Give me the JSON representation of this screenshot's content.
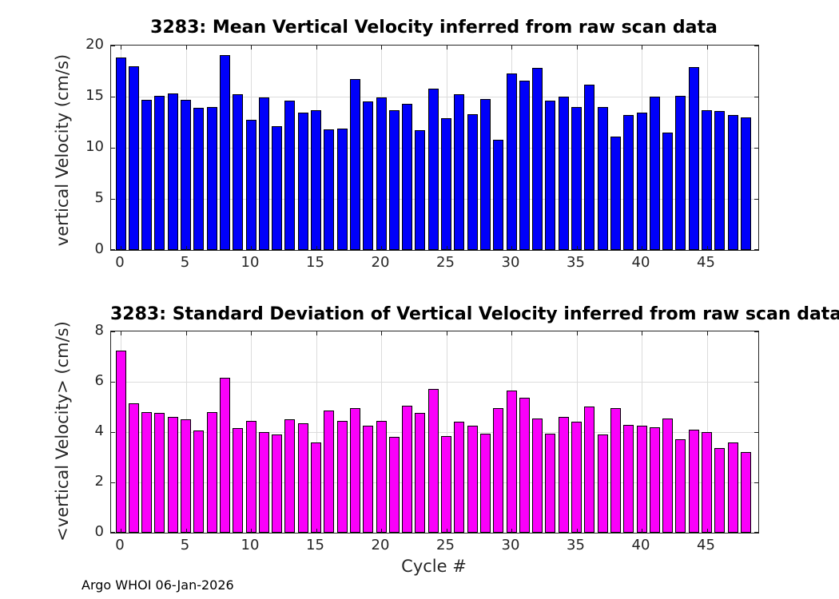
{
  "figure": {
    "xlabel": "Cycle #",
    "footer": "Argo WHOI 06-Jan-2026",
    "background_color": "#ffffff",
    "axis_color": "#262626",
    "grid_color": "#dcdcdc"
  },
  "chart_data": [
    {
      "type": "bar",
      "title": "3283: Mean Vertical Velocity inferred from raw scan data",
      "ylabel": "vertical Velocity (cm/s)",
      "xlabel": "",
      "bar_color": "#0000fa",
      "bar_edge_color": "#000000",
      "grid": true,
      "legend": null,
      "ylim": [
        0,
        20
      ],
      "yticks": [
        0,
        5,
        10,
        15,
        20
      ],
      "xticks": [
        0,
        5,
        10,
        15,
        20,
        25,
        30,
        35,
        40,
        45
      ],
      "xlim": [
        -0.7,
        49.1
      ],
      "x": [
        0,
        1,
        2,
        3,
        4,
        5,
        6,
        7,
        8,
        9,
        10,
        11,
        12,
        13,
        14,
        15,
        16,
        17,
        18,
        19,
        20,
        21,
        22,
        23,
        24,
        25,
        26,
        27,
        28,
        29,
        30,
        31,
        32,
        33,
        34,
        35,
        36,
        37,
        38,
        39,
        40,
        41,
        42,
        43,
        44,
        45,
        46,
        47,
        48
      ],
      "values": [
        18.8,
        18.0,
        14.7,
        15.1,
        15.3,
        14.7,
        13.9,
        14.0,
        19.1,
        15.2,
        12.7,
        14.9,
        12.1,
        14.6,
        13.4,
        13.7,
        11.8,
        11.9,
        16.7,
        14.5,
        14.9,
        13.7,
        14.3,
        11.7,
        15.8,
        12.9,
        15.2,
        13.3,
        14.8,
        10.8,
        17.3,
        16.6,
        17.8,
        14.6,
        15.0,
        14.0,
        16.2,
        14.0,
        11.1,
        13.2,
        13.4,
        15.0,
        11.5,
        15.1,
        17.9,
        13.7,
        13.6,
        13.2,
        13.0
      ]
    },
    {
      "type": "bar",
      "title": "3283: Standard Deviation of Vertical Velocity inferred from raw scan data",
      "ylabel": "<vertical Velocity> (cm/s)",
      "xlabel": "Cycle #",
      "bar_color": "#fa00fa",
      "bar_edge_color": "#000000",
      "grid": true,
      "legend": null,
      "ylim": [
        0,
        8
      ],
      "yticks": [
        0,
        2,
        4,
        6,
        8
      ],
      "xticks": [
        0,
        5,
        10,
        15,
        20,
        25,
        30,
        35,
        40,
        45
      ],
      "xlim": [
        -0.7,
        49.1
      ],
      "x": [
        0,
        1,
        2,
        3,
        4,
        5,
        6,
        7,
        8,
        9,
        10,
        11,
        12,
        13,
        14,
        15,
        16,
        17,
        18,
        19,
        20,
        21,
        22,
        23,
        24,
        25,
        26,
        27,
        28,
        29,
        30,
        31,
        32,
        33,
        34,
        35,
        36,
        37,
        38,
        39,
        40,
        41,
        42,
        43,
        44,
        45,
        46,
        47,
        48
      ],
      "values": [
        7.25,
        5.15,
        4.8,
        4.75,
        4.6,
        4.5,
        4.05,
        4.8,
        6.15,
        4.15,
        4.45,
        4.0,
        3.9,
        4.5,
        4.35,
        3.6,
        4.85,
        4.45,
        4.95,
        4.25,
        4.45,
        3.8,
        5.05,
        4.75,
        5.7,
        3.85,
        4.4,
        4.25,
        3.95,
        4.95,
        5.65,
        5.35,
        4.55,
        3.95,
        4.6,
        4.4,
        5.0,
        3.9,
        4.95,
        4.3,
        4.25,
        4.2,
        4.55,
        3.7,
        4.1,
        4.0,
        3.35,
        3.6,
        3.2
      ]
    }
  ]
}
